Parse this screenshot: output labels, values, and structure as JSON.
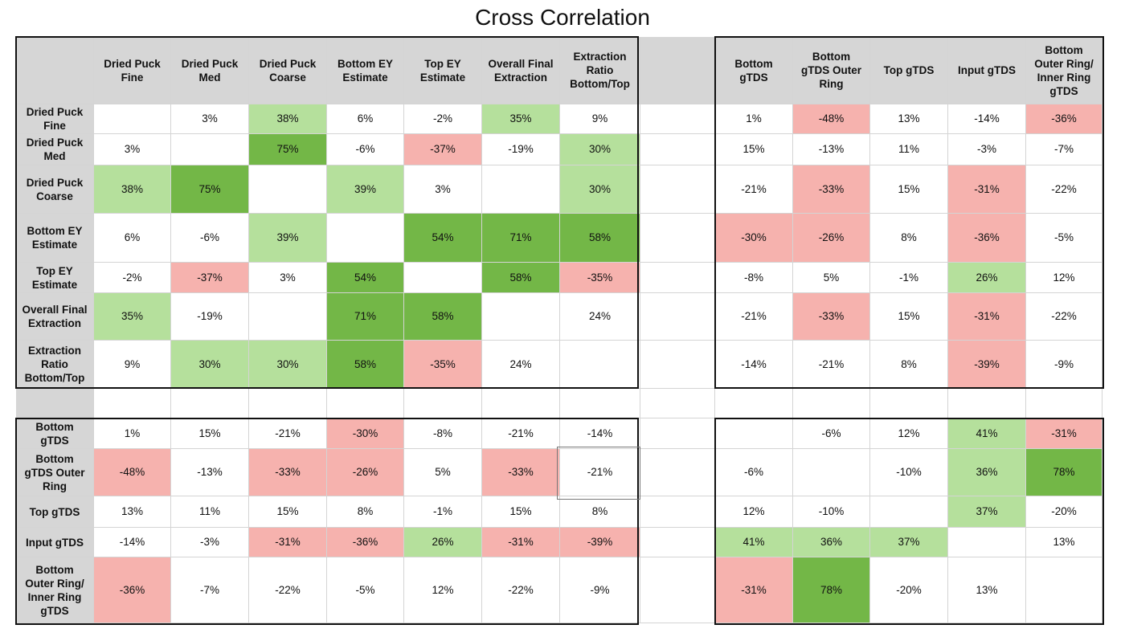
{
  "chart_data": {
    "type": "heatmap",
    "title": "Cross Correlation",
    "columns": [
      "Dried Puck Fine",
      "Dried Puck Med",
      "Dried Puck Coarse",
      "Bottom EY Estimate",
      "Top EY Estimate",
      "Overall Final Extraction",
      "Extraction Ratio Bottom/Top",
      "Bottom gTDS",
      "Bottom gTDS Outer Ring",
      "Top gTDS",
      "Input gTDS",
      "Bottom Outer Ring/ Inner Ring gTDS"
    ],
    "rows": [
      {
        "label": "Dried Puck Fine",
        "values": [
          "",
          "3%",
          "38%",
          "6%",
          "-2%",
          "35%",
          "9%",
          "1%",
          "-48%",
          "13%",
          "-14%",
          "-36%"
        ]
      },
      {
        "label": "Dried Puck Med",
        "values": [
          "3%",
          "",
          "75%",
          "-6%",
          "-37%",
          "-19%",
          "30%",
          "15%",
          "-13%",
          "11%",
          "-3%",
          "-7%"
        ]
      },
      {
        "label": "Dried Puck Coarse",
        "values": [
          "38%",
          "75%",
          "",
          "39%",
          "3%",
          "",
          "30%",
          "-21%",
          "-33%",
          "15%",
          "-31%",
          "-22%"
        ]
      },
      {
        "label": "Bottom EY Estimate",
        "values": [
          "6%",
          "-6%",
          "39%",
          "",
          "54%",
          "71%",
          "58%",
          "-30%",
          "-26%",
          "8%",
          "-36%",
          "-5%"
        ]
      },
      {
        "label": "Top EY Estimate",
        "values": [
          "-2%",
          "-37%",
          "3%",
          "54%",
          "",
          "58%",
          "-35%",
          "-8%",
          "5%",
          "-1%",
          "26%",
          "12%"
        ]
      },
      {
        "label": "Overall Final Extraction",
        "values": [
          "35%",
          "-19%",
          "",
          "71%",
          "58%",
          "",
          "24%",
          "-21%",
          "-33%",
          "15%",
          "-31%",
          "-22%"
        ]
      },
      {
        "label": "Extraction Ratio Bottom/Top",
        "values": [
          "9%",
          "30%",
          "30%",
          "58%",
          "-35%",
          "24%",
          "",
          "-14%",
          "-21%",
          "8%",
          "-39%",
          "-9%"
        ]
      },
      {
        "label": "Bottom gTDS",
        "values": [
          "1%",
          "15%",
          "-21%",
          "-30%",
          "-8%",
          "-21%",
          "-14%",
          "",
          "-6%",
          "12%",
          "41%",
          "-31%"
        ]
      },
      {
        "label": "Bottom gTDS Outer Ring",
        "values": [
          "-48%",
          "-13%",
          "-33%",
          "-26%",
          "5%",
          "-33%",
          "-21%",
          "-6%",
          "",
          "-10%",
          "36%",
          "78%"
        ]
      },
      {
        "label": "Top gTDS",
        "values": [
          "13%",
          "11%",
          "15%",
          "8%",
          "-1%",
          "15%",
          "8%",
          "12%",
          "-10%",
          "",
          "37%",
          "-20%"
        ]
      },
      {
        "label": "Input gTDS",
        "values": [
          "-14%",
          "-3%",
          "-31%",
          "-36%",
          "26%",
          "-31%",
          "-39%",
          "41%",
          "36%",
          "37%",
          "",
          "13%"
        ]
      },
      {
        "label": "Bottom Outer Ring/ Inner Ring gTDS",
        "values": [
          "-36%",
          "-7%",
          "-22%",
          "-5%",
          "12%",
          "-22%",
          "-9%",
          "-31%",
          "78%",
          "-20%",
          "13%",
          ""
        ]
      }
    ],
    "row_headers_display": [
      "Dried Puck\nFine",
      "Dried Puck\nMed",
      "Dried Puck\nCoarse",
      "Bottom EY\nEstimate",
      "Top EY\nEstimate",
      "Overall Final\nExtraction",
      "Extraction\nRatio\nBottom/Top",
      "Bottom\ngTDS",
      "Bottom\ngTDS Outer\nRing",
      "Top gTDS",
      "Input gTDS",
      "Bottom\nOuter Ring/\nInner Ring\ngTDS"
    ],
    "col_headers_display": [
      "Dried Puck\nFine",
      "Dried Puck\nMed",
      "Dried Puck\nCoarse",
      "Bottom EY\nEstimate",
      "Top EY\nEstimate",
      "Overall Final\nExtraction",
      "Extraction\nRatio\nBottom/Top",
      "Bottom\ngTDS",
      "Bottom\ngTDS Outer\nRing",
      "Top gTDS",
      "Input gTDS",
      "Bottom\nOuter Ring/\nInner Ring\ngTDS"
    ],
    "color_scale": {
      "strong_positive_threshold": 50,
      "positive_threshold": 25,
      "negative_threshold": -25,
      "strong_positive_color": "#73b747",
      "positive_color": "#b5e09c",
      "negative_color": "#f6b2ae"
    }
  }
}
